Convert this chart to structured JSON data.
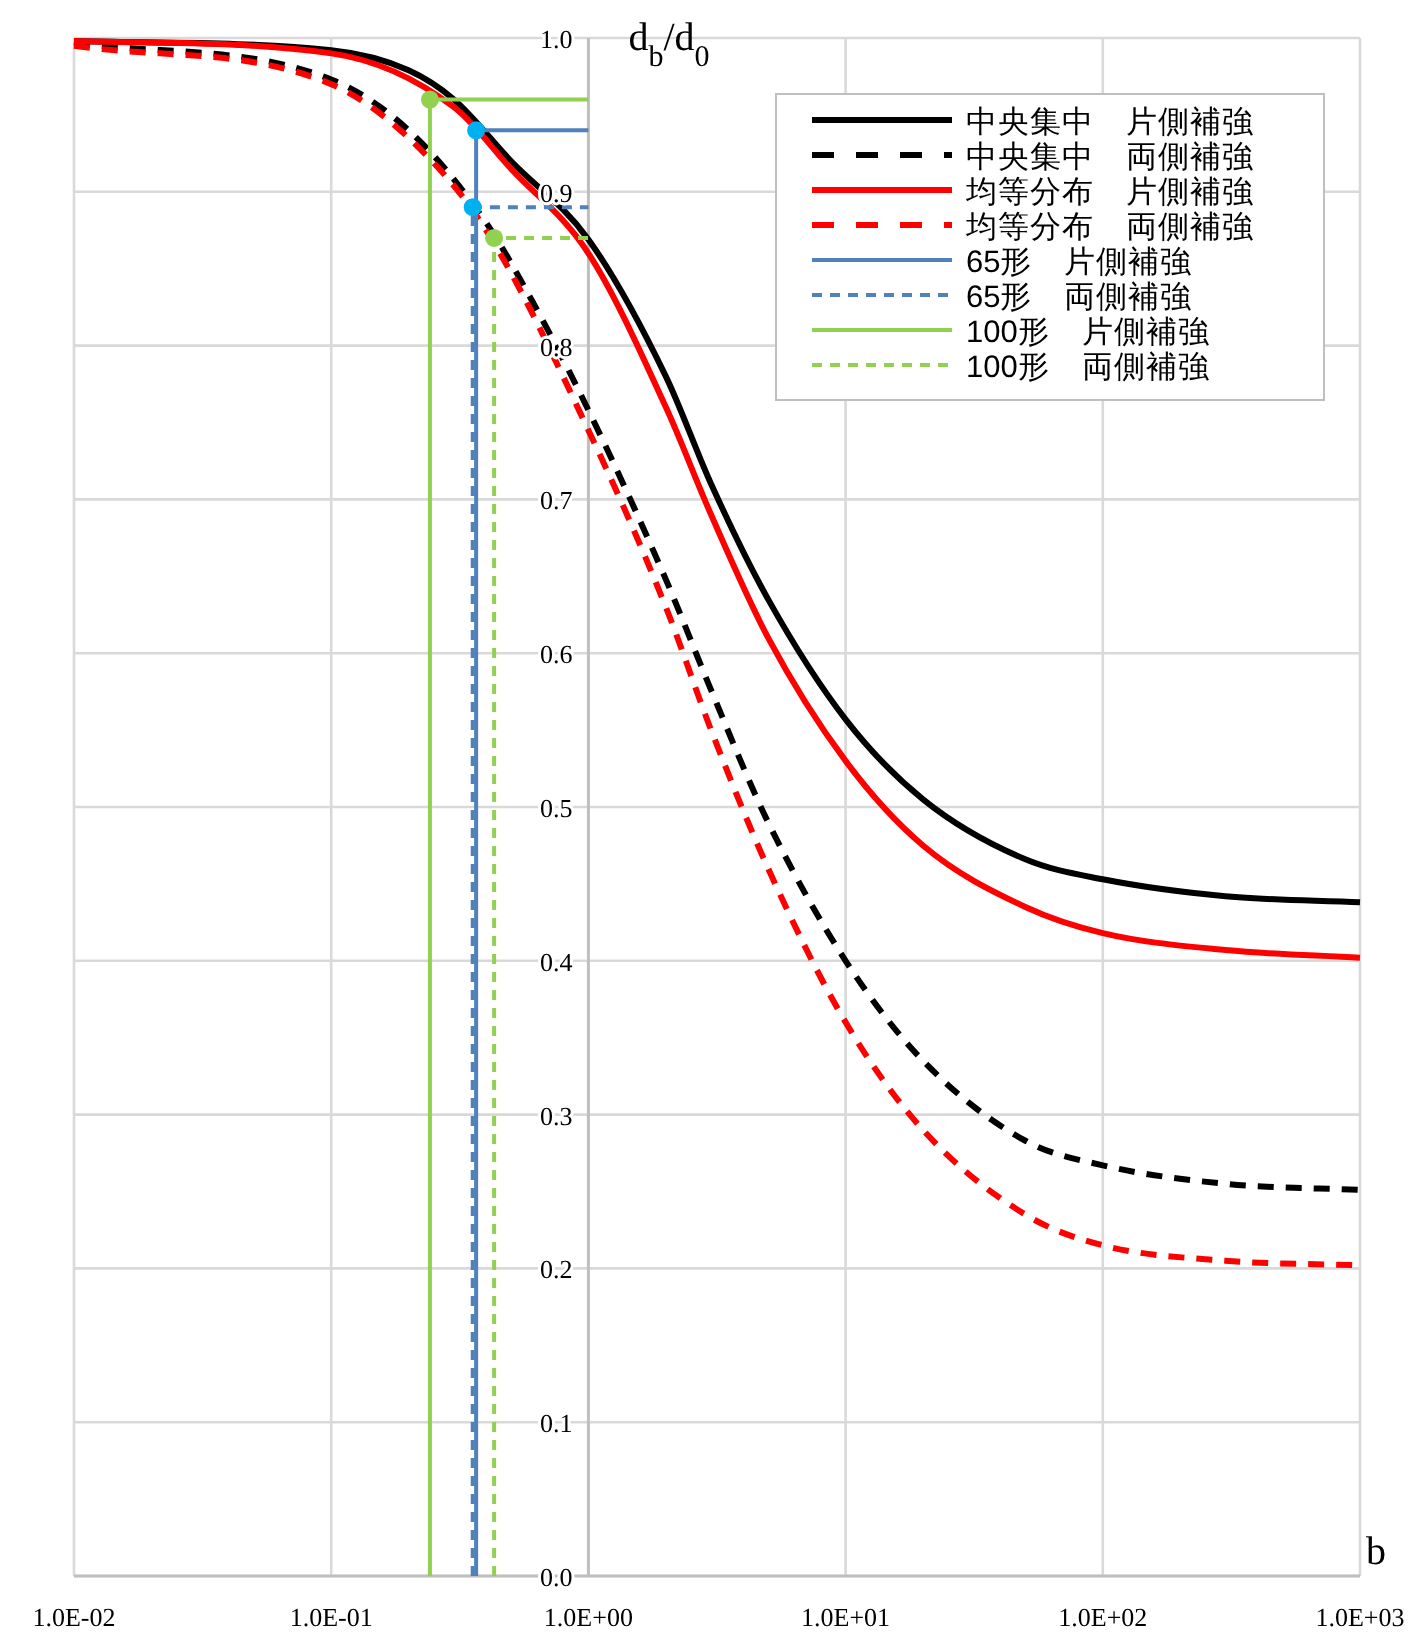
{
  "chart_data": {
    "type": "line",
    "xlabel": "b",
    "ylabel": "d$_{b}$/d$_{0}$",
    "log": "x",
    "xlim": [
      0.01,
      1000
    ],
    "ylim": [
      0,
      1
    ],
    "xticks": [
      {
        "value": 0.01,
        "label": "1.0E-02"
      },
      {
        "value": 0.1,
        "label": "1.0E-01"
      },
      {
        "value": 1,
        "label": "1.0E+00"
      },
      {
        "value": 10,
        "label": "1.0E+01"
      },
      {
        "value": 100,
        "label": "1.0E+02"
      },
      {
        "value": 1000,
        "label": "1.0E+03"
      }
    ],
    "yticks": [
      {
        "value": 0,
        "label": "0.0"
      },
      {
        "value": 0.1,
        "label": "0.1"
      },
      {
        "value": 0.2,
        "label": "0.2"
      },
      {
        "value": 0.3,
        "label": "0.3"
      },
      {
        "value": 0.4,
        "label": "0.4"
      },
      {
        "value": 0.5,
        "label": "0.5"
      },
      {
        "value": 0.6,
        "label": "0.6"
      },
      {
        "value": 0.7,
        "label": "0.7"
      },
      {
        "value": 0.8,
        "label": "0.8"
      },
      {
        "value": 0.9,
        "label": "0.9"
      },
      {
        "value": 1,
        "label": "1.0"
      }
    ],
    "grid": true,
    "legend": "top right",
    "marker": "none",
    "series": [
      {
        "name": "中央集中　片側補強",
        "color": "#000000",
        "line_style": "solid",
        "x": [
          0.01,
          0.1,
          0.2,
          0.3,
          0.5,
          1,
          2,
          3,
          5,
          10,
          20,
          50,
          100,
          300,
          1000
        ],
        "values": [
          0.998,
          0.992,
          0.979,
          0.96,
          0.92,
          0.869,
          0.78,
          0.71,
          0.635,
          0.557,
          0.505,
          0.466,
          0.453,
          0.442,
          0.438
        ]
      },
      {
        "name": "中央集中　両側補強",
        "color": "#000000",
        "line_style": "dashed",
        "x": [
          0.01,
          0.1,
          0.2,
          0.4,
          0.6,
          1,
          2,
          3,
          5,
          10,
          20,
          50,
          100,
          300,
          1000
        ],
        "values": [
          0.997,
          0.973,
          0.94,
          0.88,
          0.83,
          0.758,
          0.648,
          0.576,
          0.49,
          0.4,
          0.335,
          0.283,
          0.267,
          0.255,
          0.251
        ]
      },
      {
        "name": "均等分布　片側補強",
        "color": "#ff0000",
        "line_style": "solid",
        "x": [
          0.01,
          0.1,
          0.3,
          0.5,
          1,
          2,
          3,
          5,
          10,
          20,
          50,
          100,
          300,
          1000
        ],
        "values": [
          0.998,
          0.99,
          0.955,
          0.915,
          0.86,
          0.76,
          0.69,
          0.61,
          0.53,
          0.475,
          0.435,
          0.418,
          0.407,
          0.402
        ]
      },
      {
        "name": "均等分布　両側補強",
        "color": "#ff0000",
        "line_style": "dashed",
        "x": [
          0.01,
          0.1,
          0.2,
          0.4,
          1,
          2,
          3,
          5,
          10,
          20,
          50,
          100,
          300,
          1000
        ],
        "values": [
          0.995,
          0.97,
          0.935,
          0.875,
          0.745,
          0.63,
          0.55,
          0.46,
          0.36,
          0.29,
          0.235,
          0.215,
          0.205,
          0.202
        ]
      },
      {
        "name": "65形　片側補強",
        "color": "#4f81bd",
        "line_style": "solid",
        "x": [
          0.366,
          0.366,
          1
        ],
        "values": [
          0,
          0.94,
          0.94
        ]
      },
      {
        "name": "65形　両側補強",
        "color": "#4f81bd",
        "line_style": "dashed",
        "x": [
          0.355,
          0.355,
          1
        ],
        "values": [
          0,
          0.89,
          0.89
        ]
      },
      {
        "name": "100形　片側補強",
        "color": "#92d050",
        "line_style": "solid",
        "x": [
          0.242,
          0.242,
          1
        ],
        "values": [
          0,
          0.96,
          0.96
        ]
      },
      {
        "name": "100形　両側補強",
        "color": "#92d050",
        "line_style": "dashed",
        "x": [
          0.43,
          0.43,
          1
        ],
        "values": [
          0,
          0.87,
          0.87
        ]
      },
      {
        "type": "scatter",
        "marker": "circle",
        "color": "#00b0f0",
        "x": [
          0.366,
          0.355
        ],
        "values": [
          0.94,
          0.89
        ]
      },
      {
        "type": "scatter",
        "marker": "circle",
        "color": "#92d050",
        "x": [
          0.242,
          0.43
        ],
        "values": [
          0.96,
          0.87
        ]
      }
    ]
  }
}
